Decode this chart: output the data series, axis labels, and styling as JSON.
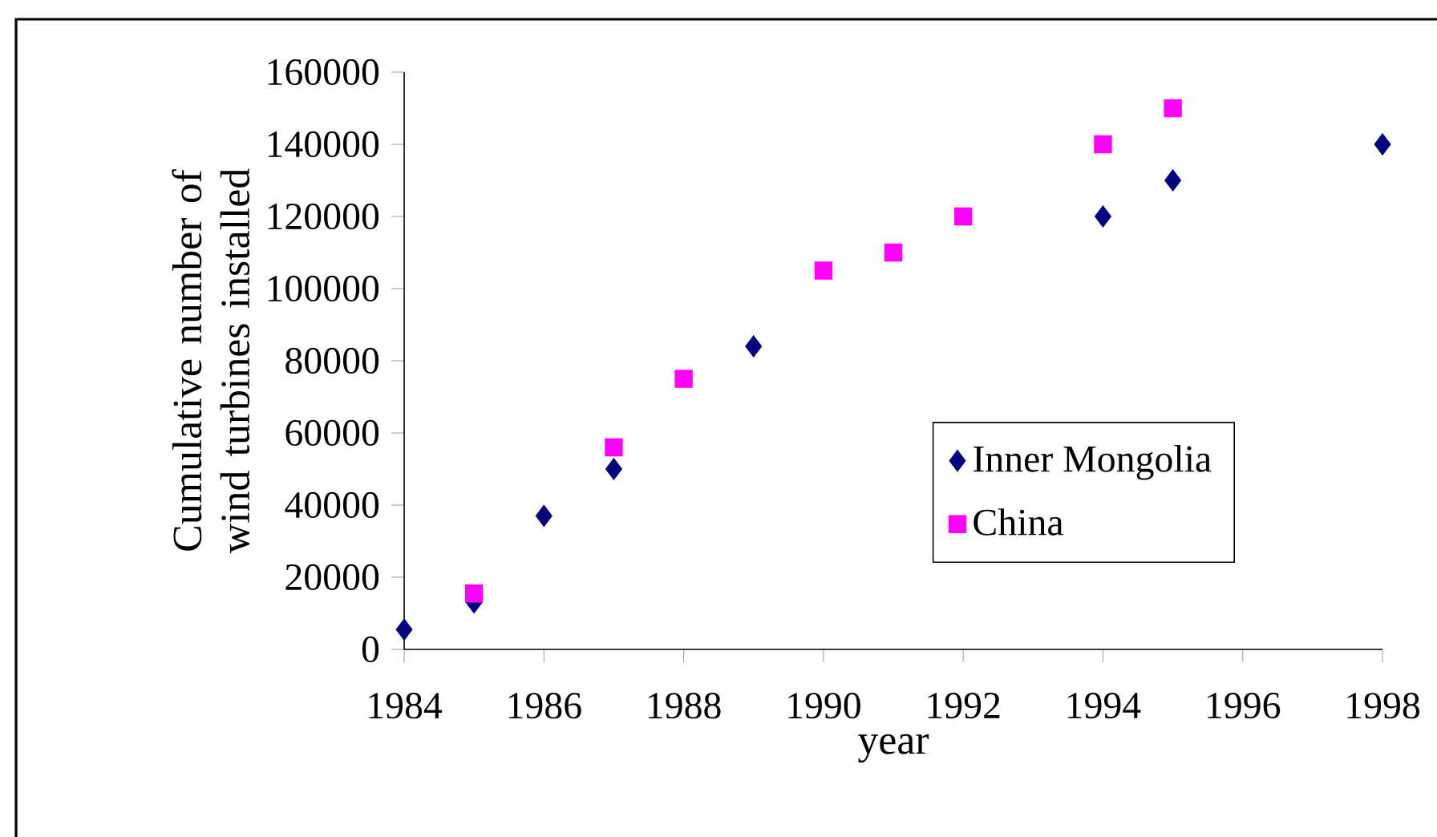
{
  "chart_data": {
    "type": "scatter",
    "xlabel": "year",
    "ylabel": "Cumulative number of wind turbines installed",
    "series": [
      {
        "name": "Inner Mongolia",
        "color": "#000080",
        "marker": "diamond",
        "x": [
          1984,
          1985,
          1986,
          1987,
          1989,
          1994,
          1995,
          1998
        ],
        "values": [
          5500,
          13000,
          37000,
          50000,
          84000,
          120000,
          130000,
          140000
        ]
      },
      {
        "name": "China",
        "color": "#ff00ff",
        "marker": "square",
        "x": [
          1985,
          1987,
          1988,
          1990,
          1991,
          1992,
          1994,
          1995
        ],
        "values": [
          15500,
          56000,
          75000,
          105000,
          110000,
          120000,
          140000,
          150000
        ]
      }
    ],
    "xlim": [
      1984,
      1998
    ],
    "xticks": [
      1984,
      1986,
      1988,
      1990,
      1992,
      1994,
      1996,
      1998
    ],
    "ylim": [
      0,
      160000
    ],
    "yticks": [
      0,
      20000,
      40000,
      60000,
      80000,
      100000,
      120000,
      140000,
      160000
    ],
    "grid": false,
    "legend": "right"
  }
}
